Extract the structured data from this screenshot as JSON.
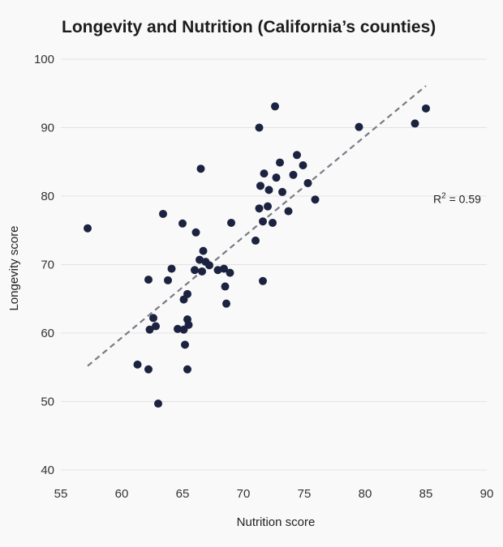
{
  "chart_data": {
    "type": "scatter",
    "title": "Longevity and Nutrition (California’s counties)",
    "xlabel": "Nutrition score",
    "ylabel": "Longevity score",
    "xlim": [
      55,
      90
    ],
    "ylim": [
      40,
      100
    ],
    "xticks": [
      55,
      60,
      65,
      70,
      75,
      80,
      85,
      90
    ],
    "yticks": [
      40,
      50,
      60,
      70,
      80,
      90,
      100
    ],
    "grid": "horizontal",
    "colors": {
      "points": "#1c2340",
      "trend": "#7a7a86",
      "grid": "#e2e2e2",
      "background": "#f9f9f9"
    },
    "trendline": {
      "x": [
        57.2,
        85.0
      ],
      "y": [
        55.2,
        96.1
      ],
      "style": "dashed"
    },
    "annotation": {
      "base": "R",
      "sup": "2",
      "rest": " = 0.59",
      "at": [
        85.6,
        79.0
      ]
    },
    "points": [
      {
        "x": 57.2,
        "y": 75.3
      },
      {
        "x": 61.3,
        "y": 55.4
      },
      {
        "x": 62.2,
        "y": 54.7
      },
      {
        "x": 62.2,
        "y": 67.8
      },
      {
        "x": 62.3,
        "y": 60.5
      },
      {
        "x": 62.6,
        "y": 62.2
      },
      {
        "x": 62.8,
        "y": 61.0
      },
      {
        "x": 63.0,
        "y": 49.7
      },
      {
        "x": 63.4,
        "y": 77.4
      },
      {
        "x": 63.8,
        "y": 67.7
      },
      {
        "x": 64.1,
        "y": 69.4
      },
      {
        "x": 64.6,
        "y": 60.6
      },
      {
        "x": 65.0,
        "y": 76.0
      },
      {
        "x": 65.1,
        "y": 64.9
      },
      {
        "x": 65.1,
        "y": 60.5
      },
      {
        "x": 65.2,
        "y": 58.3
      },
      {
        "x": 65.4,
        "y": 65.7
      },
      {
        "x": 65.4,
        "y": 62.0
      },
      {
        "x": 65.4,
        "y": 54.7
      },
      {
        "x": 65.5,
        "y": 61.2
      },
      {
        "x": 66.0,
        "y": 69.2
      },
      {
        "x": 66.1,
        "y": 74.7
      },
      {
        "x": 66.4,
        "y": 70.7
      },
      {
        "x": 66.5,
        "y": 84.0
      },
      {
        "x": 66.6,
        "y": 69.0
      },
      {
        "x": 66.7,
        "y": 72.0
      },
      {
        "x": 66.9,
        "y": 70.4
      },
      {
        "x": 67.2,
        "y": 69.9
      },
      {
        "x": 67.9,
        "y": 69.2
      },
      {
        "x": 68.4,
        "y": 69.4
      },
      {
        "x": 68.5,
        "y": 66.8
      },
      {
        "x": 68.6,
        "y": 64.3
      },
      {
        "x": 68.9,
        "y": 68.8
      },
      {
        "x": 69.0,
        "y": 76.1
      },
      {
        "x": 71.0,
        "y": 73.5
      },
      {
        "x": 71.3,
        "y": 90.0
      },
      {
        "x": 71.3,
        "y": 78.2
      },
      {
        "x": 71.4,
        "y": 81.5
      },
      {
        "x": 71.6,
        "y": 76.3
      },
      {
        "x": 71.6,
        "y": 67.6
      },
      {
        "x": 71.7,
        "y": 83.3
      },
      {
        "x": 72.0,
        "y": 78.5
      },
      {
        "x": 72.1,
        "y": 80.9
      },
      {
        "x": 72.4,
        "y": 76.1
      },
      {
        "x": 72.6,
        "y": 93.1
      },
      {
        "x": 72.7,
        "y": 82.7
      },
      {
        "x": 73.0,
        "y": 84.9
      },
      {
        "x": 73.2,
        "y": 80.6
      },
      {
        "x": 73.7,
        "y": 77.8
      },
      {
        "x": 74.1,
        "y": 83.1
      },
      {
        "x": 74.4,
        "y": 86.0
      },
      {
        "x": 74.9,
        "y": 84.5
      },
      {
        "x": 75.3,
        "y": 81.9
      },
      {
        "x": 75.9,
        "y": 79.5
      },
      {
        "x": 79.5,
        "y": 90.1
      },
      {
        "x": 84.1,
        "y": 90.6
      },
      {
        "x": 85.0,
        "y": 92.8
      }
    ]
  }
}
